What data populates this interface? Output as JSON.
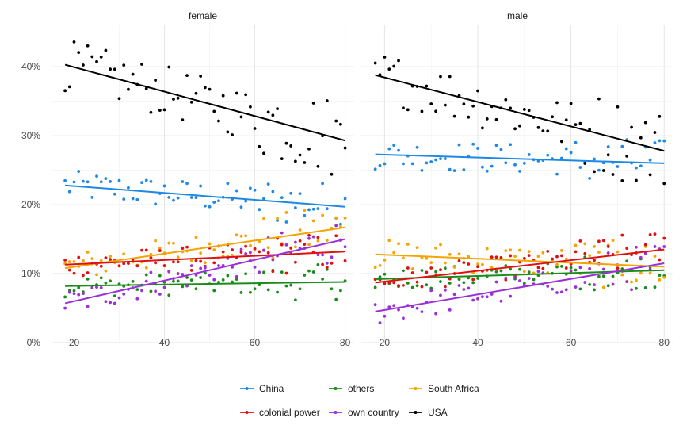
{
  "chart_data": {
    "type": "scatter",
    "facets": [
      "female",
      "male"
    ],
    "x_ticks": [
      "20",
      "40",
      "60",
      "80"
    ],
    "y_ticks": [
      "0%",
      "10%",
      "20%",
      "30%",
      "40%"
    ],
    "xlim": [
      15,
      82
    ],
    "ylim": [
      0,
      0.46
    ],
    "legend_position": "bottom",
    "colors": {
      "China": "#1e88e5",
      "others": "#1a8c1a",
      "South Africa": "#f5a400",
      "colonial power": "#e01010",
      "own country": "#9b30d9",
      "USA": "#000000"
    },
    "legend": [
      {
        "name": "China"
      },
      {
        "name": "others"
      },
      {
        "name": "South Africa"
      },
      {
        "name": "colonial power"
      },
      {
        "name": "own country"
      },
      {
        "name": "USA"
      }
    ],
    "trend_lines": {
      "female": {
        "China": [
          [
            18,
            0.228
          ],
          [
            80,
            0.197
          ]
        ],
        "others": [
          [
            18,
            0.082
          ],
          [
            80,
            0.088
          ]
        ],
        "South Africa": [
          [
            18,
            0.108
          ],
          [
            80,
            0.167
          ]
        ],
        "colonial power": [
          [
            18,
            0.113
          ],
          [
            80,
            0.132
          ]
        ],
        "own country": [
          [
            18,
            0.057
          ],
          [
            80,
            0.15
          ]
        ],
        "USA": [
          [
            18,
            0.403
          ],
          [
            80,
            0.293
          ]
        ]
      },
      "male": {
        "China": [
          [
            18,
            0.273
          ],
          [
            80,
            0.26
          ]
        ],
        "others": [
          [
            18,
            0.092
          ],
          [
            80,
            0.105
          ]
        ],
        "South Africa": [
          [
            18,
            0.128
          ],
          [
            80,
            0.11
          ]
        ],
        "colonial power": [
          [
            18,
            0.087
          ],
          [
            80,
            0.135
          ]
        ],
        "own country": [
          [
            18,
            0.045
          ],
          [
            80,
            0.115
          ]
        ],
        "USA": [
          [
            18,
            0.388
          ],
          [
            80,
            0.278
          ]
        ]
      }
    }
  }
}
